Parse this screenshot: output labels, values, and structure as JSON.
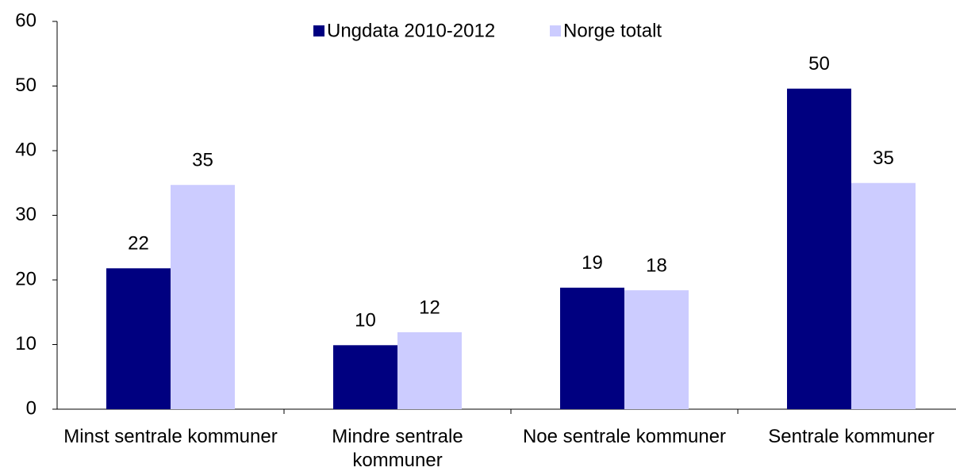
{
  "chart_data": {
    "type": "bar",
    "categories": [
      "Minst sentrale kommuner",
      "Mindre sentrale kommuner",
      "Noe sentrale kommuner",
      "Sentrale kommuner"
    ],
    "series": [
      {
        "name": "Ungdata 2010-2012",
        "color": "#000080",
        "values": [
          21.8,
          9.9,
          18.8,
          49.6
        ],
        "value_labels": [
          "22",
          "10",
          "19",
          "50"
        ]
      },
      {
        "name": "Norge totalt",
        "color": "#ccccff",
        "values": [
          34.7,
          11.9,
          18.4,
          35.0
        ],
        "value_labels": [
          "35",
          "12",
          "18",
          "35"
        ]
      }
    ],
    "ylim": [
      0,
      60
    ],
    "yticks": [
      0,
      10,
      20,
      30,
      40,
      50,
      60
    ],
    "legend": "top"
  }
}
